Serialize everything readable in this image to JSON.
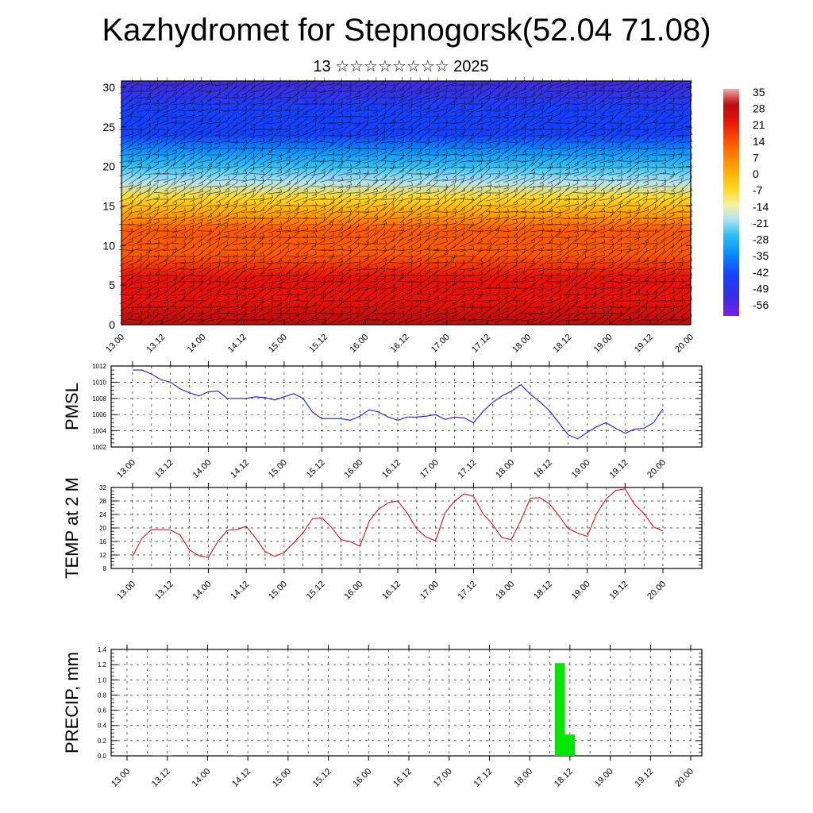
{
  "header": {
    "title": "Kazhydromet for Stepnogorsk(52.04 71.08)",
    "subtitle": "13 ☆☆☆☆☆☆☆☆ 2025"
  },
  "colors": {
    "pmsl_line": "#1a1aff",
    "temp_line": "#e01010",
    "precip_bar": "#00e600",
    "axis": "#000000"
  },
  "time_labels": [
    "13.00",
    "13.12",
    "14.00",
    "14.12",
    "15.00",
    "15.12",
    "16.00",
    "16.12",
    "17.00",
    "17.12",
    "18.00",
    "18.12",
    "19.00",
    "19.12",
    "20.00"
  ],
  "chart_data": [
    {
      "type": "heatmap",
      "title": "",
      "ylabel": "",
      "x_ticks": [
        "13.00",
        "13.12",
        "14.00",
        "14.12",
        "15.00",
        "15.12",
        "16.00",
        "16.12",
        "17.00",
        "17.12",
        "18.00",
        "18.12",
        "19.00",
        "19.12",
        "20.00"
      ],
      "y_ticks": [
        0,
        5,
        10,
        15,
        20,
        25,
        30
      ],
      "ylim": [
        0,
        30.8
      ],
      "colorbar_labels": [
        "35",
        "28",
        "21",
        "14",
        "7",
        "0",
        "-7",
        "-14",
        "-21",
        "-28",
        "-35",
        "-42",
        "-49",
        "-56"
      ],
      "colorbar_range": [
        -60,
        38
      ],
      "approx_temperature_profile": {
        "heights": [
          0,
          3,
          6,
          9,
          12,
          14,
          16,
          18,
          20,
          22,
          24,
          27,
          30
        ],
        "values": [
          28,
          24,
          19,
          14,
          7,
          1,
          -10,
          -22,
          -32,
          -40,
          -46,
          -50,
          -54
        ]
      },
      "wind_barbs": true,
      "contours": true
    },
    {
      "type": "line",
      "ylabel": "PMSL",
      "ylim": [
        1002,
        1012
      ],
      "y_ticks": [
        "1002",
        "1004",
        "1006",
        "1008",
        "1010",
        "1012"
      ],
      "x_ticks": [
        "13.00",
        "13.12",
        "14.00",
        "14.12",
        "15.00",
        "15.12",
        "16.00",
        "16.12",
        "17.00",
        "17.12",
        "18.00",
        "18.12",
        "19.00",
        "19.12",
        "20.00"
      ],
      "grid": true,
      "step_hours": 3,
      "series": [
        {
          "values": [
            1011.5,
            1011.5,
            1011,
            1010.3,
            1010,
            1009.2,
            1008.7,
            1008.3,
            1008.8,
            1008.9,
            1008,
            1008,
            1008,
            1008.2,
            1008.1,
            1007.8,
            1008.2,
            1008.6,
            1008,
            1006.3,
            1005.5,
            1005.5,
            1005.5,
            1005.3,
            1005.8,
            1006.6,
            1006.3,
            1005.7,
            1005.3,
            1005.7,
            1005.7,
            1005.8,
            1006,
            1005.4,
            1005.7,
            1005.6,
            1005,
            1006.4,
            1007.5,
            1008.3,
            1008.9,
            1009.7,
            1008.5,
            1007.6,
            1006.5,
            1005,
            1003.5,
            1003,
            1003.8,
            1004.5,
            1005,
            1004.3,
            1003.7,
            1004.2,
            1004.3,
            1005,
            1006.7
          ]
        }
      ]
    },
    {
      "type": "line",
      "ylabel": "TEMP at 2 M",
      "ylim": [
        8,
        32
      ],
      "y_ticks": [
        "8",
        "12",
        "16",
        "20",
        "24",
        "28",
        "32"
      ],
      "x_ticks": [
        "13.00",
        "13.12",
        "14.00",
        "14.12",
        "15.00",
        "15.12",
        "16.00",
        "16.12",
        "17.00",
        "17.12",
        "18.00",
        "18.12",
        "19.00",
        "19.12",
        "20.00"
      ],
      "grid": true,
      "step_hours": 3,
      "series": [
        {
          "values": [
            11.6,
            17,
            19.5,
            19.5,
            19.4,
            18,
            13.5,
            11.8,
            11.3,
            16,
            19.3,
            19.5,
            20.5,
            17,
            13,
            11.6,
            12.7,
            15.6,
            18.6,
            22.7,
            23,
            20.2,
            16.6,
            15.9,
            14.6,
            22.1,
            25.6,
            27.5,
            28,
            24.4,
            19.7,
            17.3,
            16.2,
            24.5,
            28,
            30.1,
            29.4,
            24.2,
            21.1,
            17.1,
            16.6,
            22.3,
            28.8,
            29,
            27.2,
            23.7,
            19.8,
            18.5,
            17.5,
            24.2,
            28.6,
            31.1,
            31.6,
            27,
            24.3,
            20.3,
            19.1
          ]
        }
      ]
    },
    {
      "type": "bar",
      "ylabel": "PRECIP, mm",
      "ylim": [
        0,
        1.4
      ],
      "y_ticks": [
        "0.0",
        "0.2",
        "0.4",
        "0.6",
        "0.8",
        "1.0",
        "1.2",
        "1.4"
      ],
      "x_ticks": [
        "13.00",
        "13.12",
        "14.00",
        "14.12",
        "15.00",
        "15.12",
        "16.00",
        "16.12",
        "17.00",
        "17.12",
        "18.00",
        "18.12",
        "19.00",
        "19.12",
        "20.00"
      ],
      "grid": true,
      "step_hours": 3,
      "values": [
        0,
        0,
        0,
        0.01,
        0.01,
        0,
        0,
        0,
        0,
        0,
        0,
        0.01,
        0,
        0,
        0,
        0,
        0,
        0,
        0,
        0,
        0,
        0,
        0,
        0,
        0,
        0,
        0,
        0,
        0,
        0,
        0,
        0,
        0,
        0,
        0,
        0,
        0,
        0,
        0,
        0,
        0,
        0,
        0,
        1.22,
        0.28,
        0,
        0,
        0,
        0,
        0,
        0,
        0,
        0,
        0,
        0,
        0,
        0
      ]
    }
  ]
}
